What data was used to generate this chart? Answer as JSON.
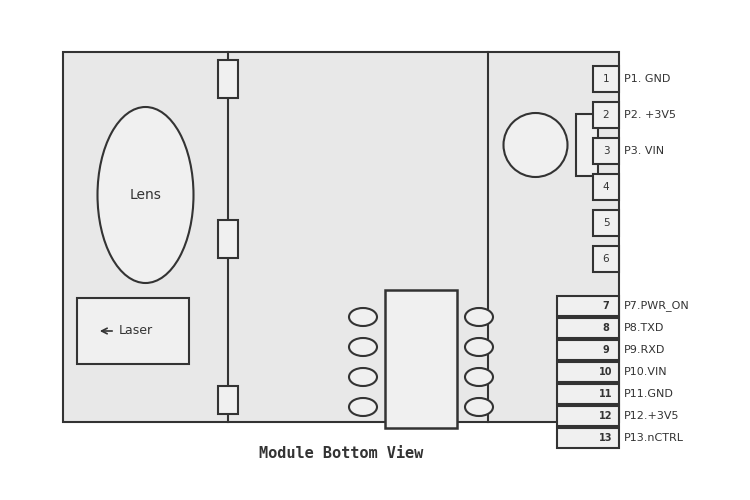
{
  "fig_width": 7.5,
  "fig_height": 5.0,
  "dpi": 100,
  "bg_color": "#ffffff",
  "board_color": "#e8e8e8",
  "line_color": "#333333",
  "title": "Module Bottom View",
  "title_fontsize": 11,
  "pins_1_6": [
    {
      "num": "1",
      "label": "P1. GND"
    },
    {
      "num": "2",
      "label": "P2. +3V5"
    },
    {
      "num": "3",
      "label": "P3. VIN"
    },
    {
      "num": "4",
      "label": ""
    },
    {
      "num": "5",
      "label": ""
    },
    {
      "num": "6",
      "label": ""
    }
  ],
  "pins_7_13": [
    {
      "num": "7",
      "label": "P7.PWR_ON"
    },
    {
      "num": "8",
      "label": "P8.TXD"
    },
    {
      "num": "9",
      "label": "P9.RXD"
    },
    {
      "num": "10",
      "label": "P10.VIN"
    },
    {
      "num": "11",
      "label": "P11.GND"
    },
    {
      "num": "12",
      "label": "P12.+3V5"
    },
    {
      "num": "13",
      "label": "P13.nCTRL"
    }
  ]
}
